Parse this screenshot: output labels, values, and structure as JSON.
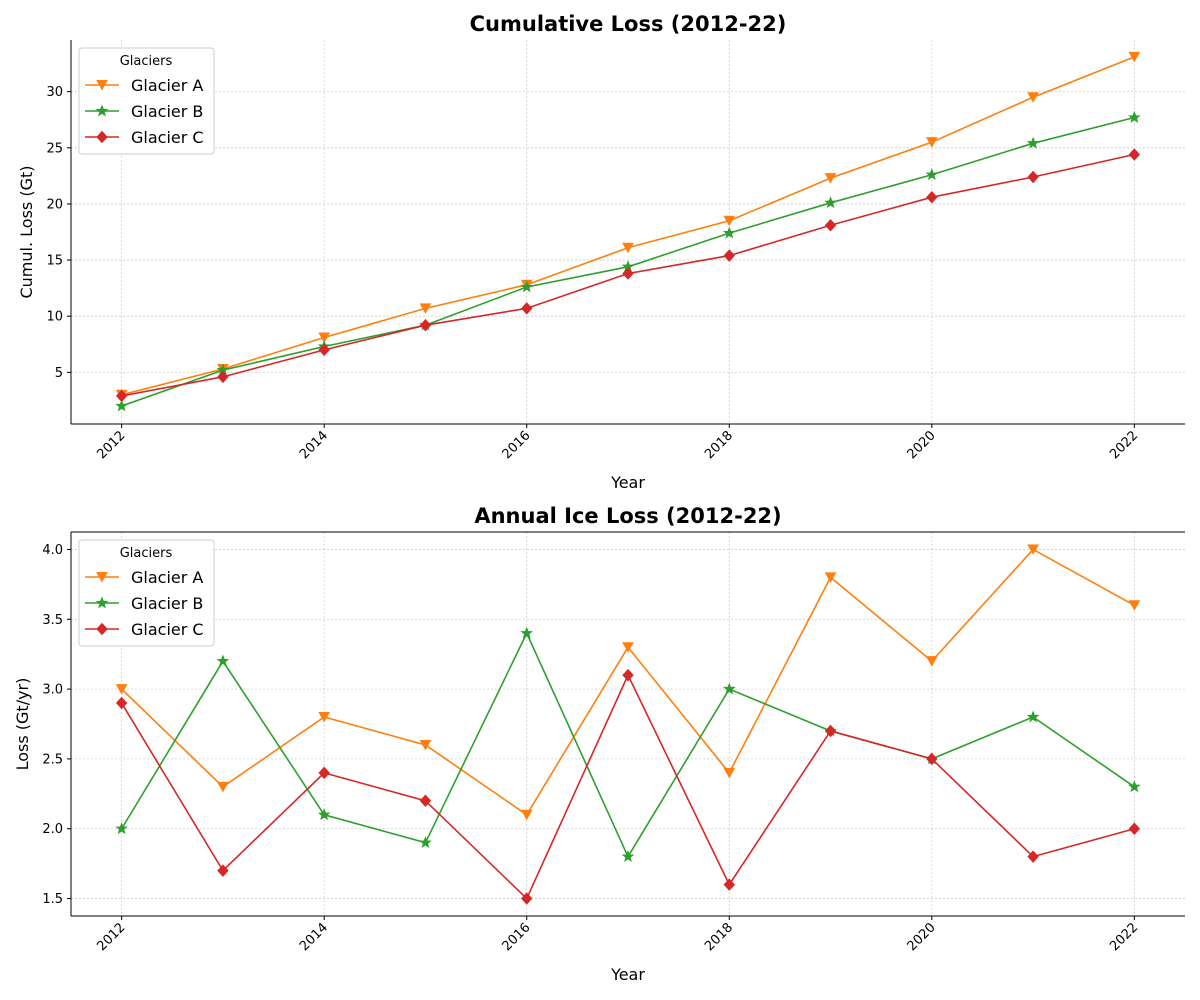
{
  "chart_data": [
    {
      "type": "line",
      "title": "Cumulative Loss (2012-22)",
      "xlabel": "Year",
      "ylabel": "Cumul. Loss (Gt)",
      "x": [
        2012,
        2013,
        2014,
        2015,
        2016,
        2017,
        2018,
        2019,
        2020,
        2021,
        2022
      ],
      "x_ticks": [
        "2012",
        "2014",
        "2016",
        "2018",
        "2020",
        "2022"
      ],
      "y_ticks": [
        "5",
        "10",
        "15",
        "20",
        "25",
        "30"
      ],
      "xlim": [
        2011.5,
        2022.5
      ],
      "ylim": [
        0.4,
        34.6
      ],
      "grid": true,
      "legend": {
        "title": "Glaciers",
        "position": "upper left"
      },
      "series": [
        {
          "name": "Glacier A",
          "color": "#ff7f0e",
          "marker": "triangle-down",
          "values": [
            3.0,
            5.3,
            8.1,
            10.7,
            12.8,
            16.1,
            18.5,
            22.3,
            25.5,
            29.5,
            33.1
          ]
        },
        {
          "name": "Glacier B",
          "color": "#2ca02c",
          "marker": "star",
          "values": [
            2.0,
            5.2,
            7.3,
            9.2,
            12.6,
            14.4,
            17.4,
            20.1,
            22.6,
            25.4,
            27.7
          ]
        },
        {
          "name": "Glacier C",
          "color": "#d62728",
          "marker": "diamond",
          "values": [
            2.9,
            4.6,
            7.0,
            9.2,
            10.7,
            13.8,
            15.4,
            18.1,
            20.6,
            22.4,
            24.4
          ]
        }
      ]
    },
    {
      "type": "line",
      "title": "Annual Ice Loss (2012-22)",
      "xlabel": "Year",
      "ylabel": "Loss (Gt/yr)",
      "x": [
        2012,
        2013,
        2014,
        2015,
        2016,
        2017,
        2018,
        2019,
        2020,
        2021,
        2022
      ],
      "x_ticks": [
        "2012",
        "2014",
        "2016",
        "2018",
        "2020",
        "2022"
      ],
      "y_ticks": [
        "1.5",
        "2.0",
        "2.5",
        "3.0",
        "3.5",
        "4.0"
      ],
      "xlim": [
        2011.5,
        2022.5
      ],
      "ylim": [
        1.375,
        4.125
      ],
      "grid": true,
      "legend": {
        "title": "Glaciers",
        "position": "upper left"
      },
      "series": [
        {
          "name": "Glacier A",
          "color": "#ff7f0e",
          "marker": "triangle-down",
          "values": [
            3.0,
            2.3,
            2.8,
            2.6,
            2.1,
            3.3,
            2.4,
            3.8,
            3.2,
            4.0,
            3.6
          ]
        },
        {
          "name": "Glacier B",
          "color": "#2ca02c",
          "marker": "star",
          "values": [
            2.0,
            3.2,
            2.1,
            1.9,
            3.4,
            1.8,
            3.0,
            2.7,
            2.5,
            2.8,
            2.3
          ]
        },
        {
          "name": "Glacier C",
          "color": "#d62728",
          "marker": "diamond",
          "values": [
            2.9,
            1.7,
            2.4,
            2.2,
            1.5,
            3.1,
            1.6,
            2.7,
            2.5,
            1.8,
            2.0
          ]
        }
      ]
    }
  ]
}
